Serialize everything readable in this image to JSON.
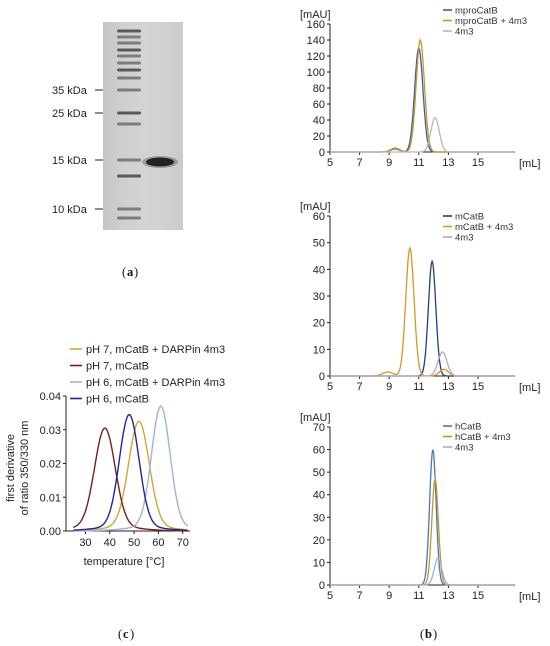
{
  "gel": {
    "markers": [
      "35 kDa",
      "25 kDa",
      "15 kDa",
      "10 kDa"
    ],
    "caption": "a"
  },
  "panel_c": {
    "caption": "c",
    "chart_data": {
      "type": "line",
      "xlabel": "temperature [°C]",
      "ylabel": "first derivative of ratio 350/330 nm",
      "xlim": [
        22,
        73
      ],
      "ylim": [
        0,
        0.04
      ],
      "xticks": [
        "30",
        "40",
        "50",
        "60",
        "70"
      ],
      "yticks": [
        "0.00",
        "0.01",
        "0.02",
        "0.03",
        "0.04"
      ],
      "legend_position": "top",
      "series": [
        {
          "name": "pH 7, mCatB + DARPin 4m3",
          "color": "#d4a72c",
          "peak_x": 52,
          "peak_y": 0.031,
          "sigma": 4.2
        },
        {
          "name": "pH 7, mCatB",
          "color": "#7a2012",
          "peak_x": 38,
          "peak_y": 0.029,
          "sigma": 4.2
        },
        {
          "name": "pH 6, mCatB + DARPin 4m3",
          "color": "#9db3e0",
          "peak_x": 61,
          "peak_y": 0.0355,
          "sigma": 3.8
        },
        {
          "name": "pH 6, mCatB",
          "color": "#23249b",
          "peak_x": 48,
          "peak_y": 0.033,
          "sigma": 4.0
        }
      ]
    }
  },
  "panel_b": {
    "caption": "b",
    "chart_data": [
      {
        "type": "line",
        "ylabel": "[mAU]",
        "xlabel": "[mL]",
        "xlim": [
          5,
          17.5
        ],
        "ylim": [
          0,
          160
        ],
        "xticks": [
          "5",
          "7",
          "9",
          "11",
          "13",
          "15"
        ],
        "yticks": [
          "0",
          "20",
          "40",
          "60",
          "80",
          "100",
          "120",
          "140",
          "160"
        ],
        "legend_position": "top-right",
        "series": [
          {
            "name": "mproCatB",
            "color": "#3a5bb5",
            "peaks": [
              {
                "x": 11.0,
                "y": 130,
                "s": 0.28
              },
              {
                "x": 9.4,
                "y": 4,
                "s": 0.3
              }
            ]
          },
          {
            "name": "mproCatB + 4m3",
            "color": "#c8981e",
            "peaks": [
              {
                "x": 11.1,
                "y": 140,
                "s": 0.28
              },
              {
                "x": 9.4,
                "y": 5,
                "s": 0.3
              }
            ]
          },
          {
            "name": "4m3",
            "color": "#b8b8b8",
            "peaks": [
              {
                "x": 12.1,
                "y": 43,
                "s": 0.28
              }
            ]
          }
        ]
      },
      {
        "type": "line",
        "ylabel": "[mAU]",
        "xlabel": "[mL]",
        "xlim": [
          5,
          17.5
        ],
        "ylim": [
          0,
          60
        ],
        "xticks": [
          "5",
          "7",
          "9",
          "11",
          "13",
          "15"
        ],
        "yticks": [
          "0",
          "10",
          "20",
          "30",
          "40",
          "50",
          "60"
        ],
        "legend_position": "top-right",
        "series": [
          {
            "name": "mCatB",
            "color": "#1f3f7a",
            "peaks": [
              {
                "x": 11.9,
                "y": 43,
                "s": 0.25
              }
            ]
          },
          {
            "name": "mCatB + 4m3",
            "color": "#d49a1e",
            "peaks": [
              {
                "x": 10.4,
                "y": 48,
                "s": 0.28
              },
              {
                "x": 8.9,
                "y": 1.5,
                "s": 0.35
              },
              {
                "x": 12.7,
                "y": 2.5,
                "s": 0.3
              }
            ]
          },
          {
            "name": "4m3",
            "color": "#b8a4c8",
            "peaks": [
              {
                "x": 12.6,
                "y": 9,
                "s": 0.3
              }
            ]
          }
        ]
      },
      {
        "type": "line",
        "ylabel": "[mAU]",
        "xlabel": "[mL]",
        "xlim": [
          5,
          17.5
        ],
        "ylim": [
          0,
          70
        ],
        "xticks": [
          "5",
          "7",
          "9",
          "11",
          "13",
          "15"
        ],
        "yticks": [
          "0",
          "10",
          "20",
          "30",
          "40",
          "50",
          "60",
          "70"
        ],
        "legend_position": "top-right",
        "series": [
          {
            "name": "hCatB",
            "color": "#4a73c8",
            "peaks": [
              {
                "x": 11.95,
                "y": 60,
                "s": 0.22
              }
            ]
          },
          {
            "name": "hCatB + 4m3",
            "color": "#c8981e",
            "peaks": [
              {
                "x": 12.1,
                "y": 47,
                "s": 0.22
              }
            ]
          },
          {
            "name": "4m3",
            "color": "#9ab0d8",
            "peaks": [
              {
                "x": 12.3,
                "y": 12,
                "s": 0.25
              }
            ]
          }
        ]
      }
    ]
  }
}
